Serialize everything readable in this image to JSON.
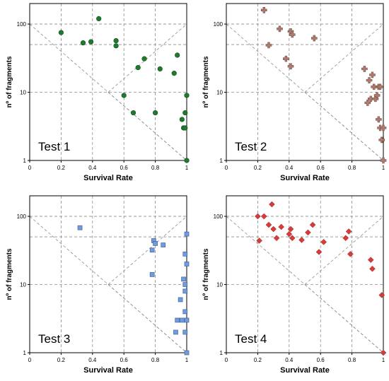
{
  "chart_data": [
    {
      "type": "scatter",
      "panel_label": "Test 1",
      "xlabel": "Survival Rate",
      "ylabel": "nº of fragments",
      "xlim": [
        0,
        1
      ],
      "ylim": [
        1,
        200
      ],
      "y_scale": "log",
      "x_ticks": [
        "0",
        "0.2",
        "0.4",
        "0.6",
        "0.8",
        "1"
      ],
      "y_ticks": [
        "1",
        "10",
        "100"
      ],
      "marker": "circle",
      "color": "#1f7a2e",
      "points": [
        [
          0.2,
          75
        ],
        [
          0.34,
          53
        ],
        [
          0.39,
          55
        ],
        [
          0.44,
          120
        ],
        [
          0.55,
          48
        ],
        [
          0.55,
          57
        ],
        [
          0.6,
          9
        ],
        [
          0.66,
          5
        ],
        [
          0.69,
          23
        ],
        [
          0.73,
          31
        ],
        [
          0.8,
          5
        ],
        [
          0.83,
          22
        ],
        [
          0.92,
          19
        ],
        [
          0.94,
          35
        ],
        [
          0.97,
          4
        ],
        [
          0.98,
          3
        ],
        [
          0.99,
          3
        ],
        [
          0.99,
          5
        ],
        [
          1.0,
          9
        ],
        [
          1.0,
          1
        ]
      ]
    },
    {
      "type": "scatter",
      "panel_label": "Test 2",
      "xlabel": "Survival Rate",
      "ylabel": "nº of fragments",
      "xlim": [
        0,
        1
      ],
      "ylim": [
        1,
        200
      ],
      "y_scale": "log",
      "x_ticks": [
        "0",
        "0.2",
        "0.4",
        "0.6",
        "0.8",
        "1"
      ],
      "y_ticks": [
        "1",
        "10",
        "100"
      ],
      "marker": "plus",
      "color": "#b07a6c",
      "points": [
        [
          0.24,
          160
        ],
        [
          0.27,
          49
        ],
        [
          0.34,
          85
        ],
        [
          0.38,
          31
        ],
        [
          0.41,
          78
        ],
        [
          0.41,
          24
        ],
        [
          0.42,
          70
        ],
        [
          0.56,
          62
        ],
        [
          0.88,
          22
        ],
        [
          0.9,
          7
        ],
        [
          0.91,
          15
        ],
        [
          0.92,
          8
        ],
        [
          0.93,
          18
        ],
        [
          0.94,
          12
        ],
        [
          0.95,
          8
        ],
        [
          0.96,
          9
        ],
        [
          0.97,
          12
        ],
        [
          0.97,
          4
        ],
        [
          0.98,
          3
        ],
        [
          0.98,
          12
        ],
        [
          0.99,
          2
        ],
        [
          1.0,
          3
        ],
        [
          1.0,
          1
        ]
      ]
    },
    {
      "type": "scatter",
      "panel_label": "Test 3",
      "xlabel": "Survival Rate",
      "ylabel": "nº of fragments",
      "xlim": [
        0,
        1
      ],
      "ylim": [
        1,
        200
      ],
      "y_scale": "log",
      "x_ticks": [
        "0",
        "0.2",
        "0.4",
        "0.6",
        "0.8",
        "1"
      ],
      "y_ticks": [
        "1",
        "10",
        "100"
      ],
      "marker": "square",
      "color": "#6f9be0",
      "points": [
        [
          0.32,
          68
        ],
        [
          0.78,
          32
        ],
        [
          0.78,
          14
        ],
        [
          0.79,
          44
        ],
        [
          0.8,
          40
        ],
        [
          0.85,
          38
        ],
        [
          0.93,
          2
        ],
        [
          0.94,
          3
        ],
        [
          0.96,
          6
        ],
        [
          0.97,
          3
        ],
        [
          0.98,
          12
        ],
        [
          0.99,
          10
        ],
        [
          0.99,
          8
        ],
        [
          1.0,
          55
        ],
        [
          0.99,
          28
        ],
        [
          1.0,
          20
        ],
        [
          0.99,
          4
        ],
        [
          0.99,
          2
        ],
        [
          1.0,
          1
        ],
        [
          1.0,
          3
        ]
      ]
    },
    {
      "type": "scatter",
      "panel_label": "Test 4",
      "xlabel": "Survival Rate",
      "ylabel": "nº of fragments",
      "xlim": [
        0,
        1
      ],
      "ylim": [
        1,
        200
      ],
      "y_scale": "log",
      "x_ticks": [
        "0",
        "0.2",
        "0.4",
        "0.6",
        "0.8",
        "1"
      ],
      "y_ticks": [
        "1",
        "10",
        "100"
      ],
      "marker": "diamond",
      "color": "#d93a3a",
      "points": [
        [
          0.2,
          100
        ],
        [
          0.21,
          44
        ],
        [
          0.24,
          100
        ],
        [
          0.27,
          75
        ],
        [
          0.29,
          150
        ],
        [
          0.3,
          65
        ],
        [
          0.32,
          48
        ],
        [
          0.35,
          70
        ],
        [
          0.4,
          55
        ],
        [
          0.41,
          65
        ],
        [
          0.42,
          48
        ],
        [
          0.48,
          45
        ],
        [
          0.52,
          58
        ],
        [
          0.55,
          75
        ],
        [
          0.59,
          30
        ],
        [
          0.62,
          42
        ],
        [
          0.76,
          48
        ],
        [
          0.78,
          60
        ],
        [
          0.79,
          28
        ],
        [
          0.92,
          23
        ],
        [
          0.93,
          17
        ],
        [
          0.99,
          7
        ],
        [
          1.0,
          1
        ]
      ]
    }
  ]
}
